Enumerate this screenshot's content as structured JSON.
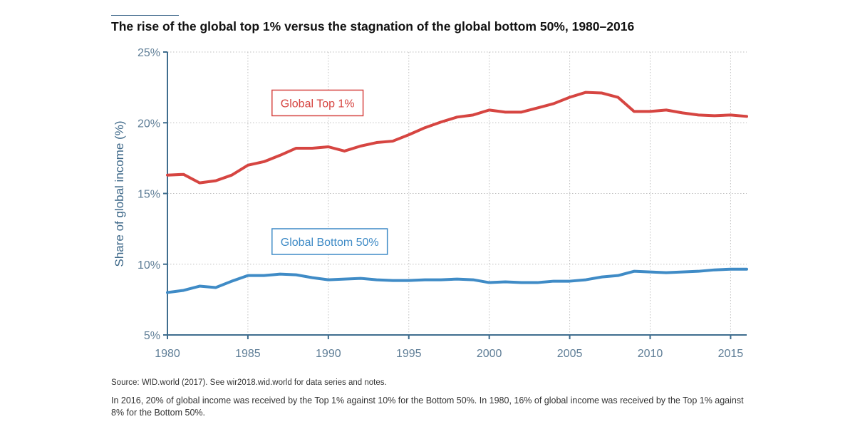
{
  "chart_data": {
    "type": "line",
    "title": "The rise of the global top 1% versus the stagnation of the global bottom 50%, 1980–2016",
    "ylabel": "Share of global income (%)",
    "xlim": [
      1980,
      2016
    ],
    "ylim": [
      5,
      25
    ],
    "x_ticks": [
      1980,
      1985,
      1990,
      1995,
      2000,
      2005,
      2010,
      2015
    ],
    "x_tick_labels": [
      "1980",
      "1985",
      "1990",
      "1995",
      "2000",
      "2005",
      "2010",
      "2015"
    ],
    "y_ticks": [
      5,
      10,
      15,
      20,
      25
    ],
    "y_tick_labels": [
      "5%",
      "10%",
      "15%",
      "20%",
      "25%"
    ],
    "grid": true,
    "x": [
      1980,
      1981,
      1982,
      1983,
      1984,
      1985,
      1986,
      1987,
      1988,
      1989,
      1990,
      1991,
      1992,
      1993,
      1994,
      1995,
      1996,
      1997,
      1998,
      1999,
      2000,
      2001,
      2002,
      2003,
      2004,
      2005,
      2006,
      2007,
      2008,
      2009,
      2010,
      2011,
      2012,
      2013,
      2014,
      2015,
      2016
    ],
    "series": [
      {
        "name": "Global Top 1%",
        "color": "#d64541",
        "label_x": 1986.5,
        "label_y": 21.4,
        "values": [
          16.3,
          16.35,
          15.75,
          15.9,
          16.3,
          17.0,
          17.25,
          17.7,
          18.2,
          18.2,
          18.3,
          18.0,
          18.35,
          18.6,
          18.7,
          19.15,
          19.65,
          20.05,
          20.4,
          20.55,
          20.9,
          20.75,
          20.75,
          21.05,
          21.35,
          21.8,
          22.15,
          22.1,
          21.8,
          20.8,
          20.8,
          20.9,
          20.7,
          20.55,
          20.5,
          20.55,
          20.45
        ]
      },
      {
        "name": "Global Bottom 50%",
        "color": "#3f8bc6",
        "label_x": 1986.5,
        "label_y": 11.6,
        "values": [
          8.0,
          8.15,
          8.45,
          8.35,
          8.8,
          9.2,
          9.2,
          9.3,
          9.25,
          9.05,
          8.9,
          8.95,
          9.0,
          8.9,
          8.85,
          8.85,
          8.9,
          8.9,
          8.95,
          8.9,
          8.7,
          8.75,
          8.7,
          8.7,
          8.8,
          8.8,
          8.9,
          9.1,
          9.2,
          9.5,
          9.45,
          9.4,
          9.45,
          9.5,
          9.6,
          9.65,
          9.65
        ]
      }
    ]
  },
  "footer": {
    "source": "Source: WID.world (2017). See wir2018.wid.world for data series and notes.",
    "note": "In 2016, 20% of global income was received by the Top 1% against 10% for the Bottom 50%. In 1980, 16% of global income was received by the Top 1% against 8% for the Bottom 50%."
  }
}
